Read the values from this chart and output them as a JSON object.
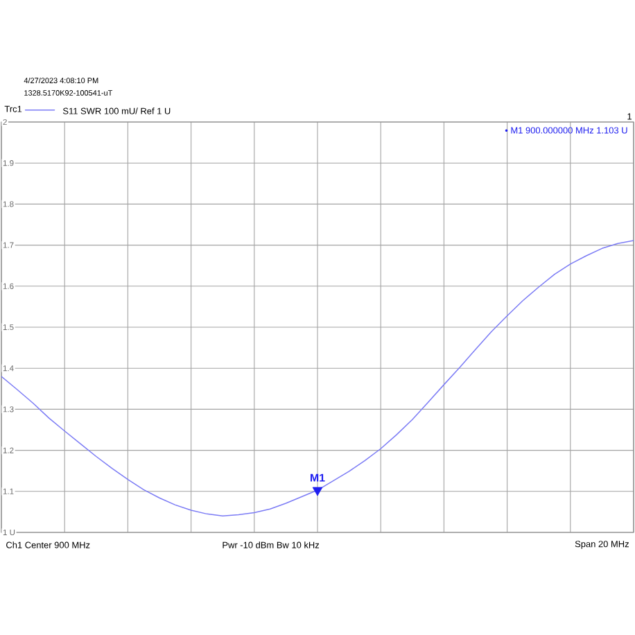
{
  "chart_data": {
    "type": "line",
    "subtitle": "S11 SWR 100 mU/ Ref 1 U",
    "categories": [
      null,
      null,
      null,
      null,
      null,
      null,
      null,
      null,
      null,
      null,
      null,
      null,
      null,
      null,
      null,
      null,
      null,
      null,
      null,
      null,
      null,
      null,
      null,
      null,
      null,
      null,
      null,
      null,
      null,
      null,
      null,
      null,
      null,
      null,
      null,
      null,
      null,
      null,
      null,
      null,
      null
    ],
    "series": [
      {
        "name": "Trc1",
        "color": "#7b7bf5",
        "values": [
          1.38,
          1.348,
          1.315,
          1.279,
          1.247,
          1.216,
          1.185,
          1.156,
          1.129,
          1.104,
          1.084,
          1.067,
          1.054,
          1.045,
          1.04,
          1.043,
          1.048,
          1.057,
          1.071,
          1.087,
          1.103,
          1.126,
          1.149,
          1.175,
          1.204,
          1.238,
          1.275,
          1.317,
          1.36,
          1.402,
          1.446,
          1.489,
          1.528,
          1.565,
          1.598,
          1.629,
          1.654,
          1.674,
          1.692,
          1.704,
          1.711
        ]
      },
      {
        "name": "M1",
        "type": "scatter",
        "marker": "triangle",
        "color": "#1e1ef0",
        "values": [
          null,
          null,
          null,
          null,
          null,
          null,
          null,
          null,
          null,
          null,
          null,
          null,
          null,
          null,
          null,
          null,
          null,
          null,
          null,
          null,
          1.103,
          null,
          null,
          null,
          null,
          null,
          null,
          null,
          null,
          null,
          null,
          null,
          null,
          null,
          null,
          null,
          null,
          null,
          null,
          null,
          null
        ]
      }
    ],
    "ylim": [
      1,
      2
    ],
    "yticks": [
      {
        "value": 1,
        "label": "1 U"
      },
      1.1,
      1.2,
      1.3,
      1.4,
      1.5,
      1.6,
      1.7,
      1.8,
      1.9,
      2
    ],
    "tick_labels": "y",
    "grid": true,
    "legend": "top left",
    "marker": "none",
    "line_style": "solid",
    "annotations": [
      "4/27/2023 4:08:10 PM",
      "1328.5170K92-100541-uT",
      "1",
      "• M1 900.000000 MHz 1.103 U",
      "Ch1 Center 900 MHz",
      "Pwr -10 dBm Bw 10 kHz",
      "Span 20 MHz"
    ]
  }
}
